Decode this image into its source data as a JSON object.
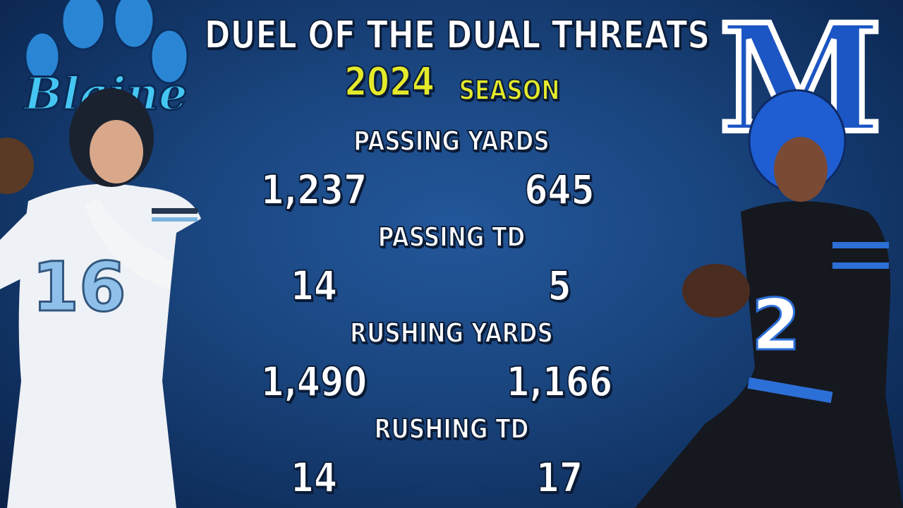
{
  "header": {
    "title": "DUEL OF THE DUAL THREATS",
    "year": "2024",
    "subtitle": "SEASON"
  },
  "logos": {
    "left": "Blaine",
    "right": "M"
  },
  "players": {
    "left_jersey": "16",
    "right_jersey": "2"
  },
  "stats": [
    {
      "label": "PASSING YARDS",
      "left": "1,237",
      "right": "645"
    },
    {
      "label": "PASSING TD",
      "left": "14",
      "right": "5"
    },
    {
      "label": "RUSHING YARDS",
      "left": "1,490",
      "right": "1,166"
    },
    {
      "label": "RUSHING TD",
      "left": "14",
      "right": "17"
    }
  ]
}
